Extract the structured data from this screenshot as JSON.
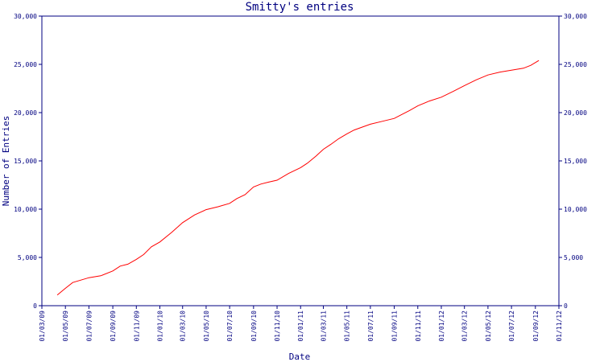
{
  "chart_data": {
    "type": "line",
    "title": "Smitty's entries",
    "xlabel": "Date",
    "ylabel": "Number of Entries",
    "x_ticks": [
      "01/03/09",
      "01/05/09",
      "01/07/09",
      "01/09/09",
      "01/11/09",
      "01/01/10",
      "01/03/10",
      "01/05/10",
      "01/07/10",
      "01/09/10",
      "01/11/10",
      "01/01/11",
      "01/03/11",
      "01/05/11",
      "01/07/11",
      "01/09/11",
      "01/11/11",
      "01/01/12",
      "01/03/12",
      "01/05/12",
      "01/07/12",
      "01/09/12",
      "01/11/12"
    ],
    "y_ticks": [
      "0",
      "5,000",
      "10,000",
      "15,000",
      "20,000",
      "25,000",
      "30,000"
    ],
    "ylim": [
      0,
      30000
    ],
    "grid": false,
    "colors": {
      "axis": "#000080",
      "line": "#ff0000"
    },
    "series": [
      {
        "x": [
          "2009-04-10",
          "2009-05-01",
          "2009-05-20",
          "2009-06-10",
          "2009-07-01",
          "2009-08-01",
          "2009-09-01",
          "2009-09-20",
          "2009-10-10",
          "2009-11-01",
          "2009-11-20",
          "2009-12-10",
          "2010-01-01",
          "2010-02-01",
          "2010-03-01",
          "2010-04-01",
          "2010-05-01",
          "2010-06-01",
          "2010-07-01",
          "2010-07-20",
          "2010-08-10",
          "2010-09-01",
          "2010-09-20",
          "2010-10-10",
          "2010-11-01",
          "2010-12-01",
          "2011-01-01",
          "2011-01-20",
          "2011-02-10",
          "2011-03-01",
          "2011-03-20",
          "2011-04-10",
          "2011-05-01",
          "2011-05-20",
          "2011-06-10",
          "2011-07-01",
          "2011-08-01",
          "2011-09-01",
          "2011-09-20",
          "2011-10-10",
          "2011-11-01",
          "2011-12-01",
          "2012-01-01",
          "2012-02-01",
          "2012-03-01",
          "2012-04-01",
          "2012-05-01",
          "2012-06-01",
          "2012-07-01",
          "2012-08-01",
          "2012-08-20",
          "2012-09-10"
        ],
        "values": [
          1100,
          1800,
          2400,
          2650,
          2900,
          3100,
          3600,
          4100,
          4300,
          4800,
          5300,
          6100,
          6600,
          7600,
          8600,
          9400,
          9950,
          10250,
          10600,
          11100,
          11500,
          12300,
          12600,
          12800,
          13000,
          13700,
          14300,
          14800,
          15500,
          16200,
          16700,
          17300,
          17800,
          18200,
          18500,
          18800,
          19100,
          19400,
          19800,
          20200,
          20700,
          21200,
          21600,
          22200,
          22800,
          23400,
          23900,
          24200,
          24400,
          24600,
          24900,
          25400
        ]
      }
    ]
  }
}
